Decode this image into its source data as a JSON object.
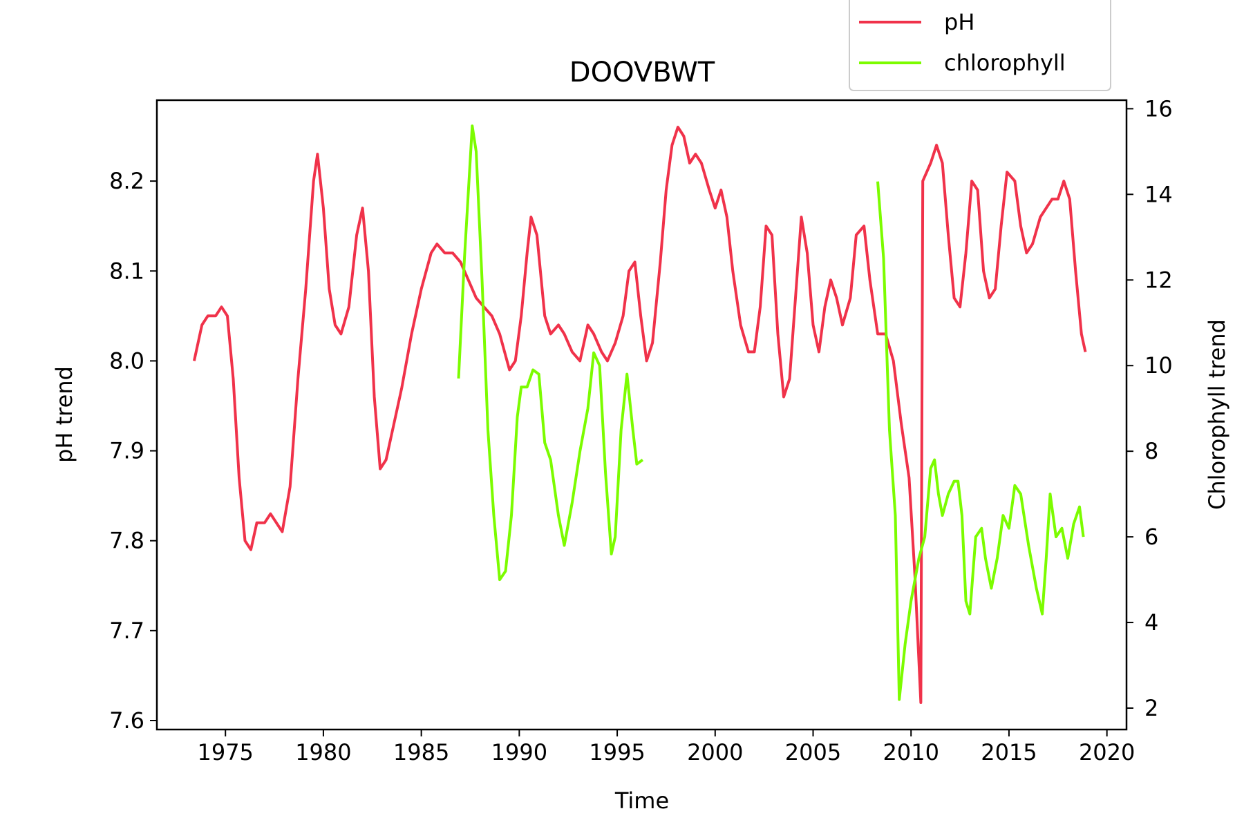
{
  "chart_data": {
    "type": "line",
    "title": "DOOVBWT",
    "xlabel": "Time",
    "ylabel": "pH trend",
    "y2label": "Chlorophyll trend",
    "xlim": [
      1971.5,
      2021.0
    ],
    "ylim": [
      7.59,
      8.29
    ],
    "y2lim": [
      1.5,
      16.2
    ],
    "x_ticks": [
      1975,
      1980,
      1985,
      1990,
      1995,
      2000,
      2005,
      2010,
      2015,
      2020
    ],
    "y_ticks": [
      7.6,
      7.7,
      7.8,
      7.9,
      8.0,
      8.1,
      8.2
    ],
    "y_tick_labels": [
      "7.6",
      "7.7",
      "7.8",
      "7.9",
      "8.0",
      "8.1",
      "8.2"
    ],
    "y2_ticks": [
      2,
      4,
      6,
      8,
      10,
      12,
      14,
      16
    ],
    "legend": {
      "placement": "top-right, above plot"
    },
    "series": [
      {
        "name": "pH",
        "axis": "left",
        "color": "#f0324a",
        "segments": [
          [
            [
              1973.4,
              8.0
            ],
            [
              1973.8,
              8.04
            ],
            [
              1974.1,
              8.05
            ],
            [
              1974.5,
              8.05
            ],
            [
              1974.8,
              8.06
            ],
            [
              1975.1,
              8.05
            ],
            [
              1975.4,
              7.98
            ],
            [
              1975.7,
              7.87
            ],
            [
              1976.0,
              7.8
            ],
            [
              1976.3,
              7.79
            ],
            [
              1976.6,
              7.82
            ],
            [
              1977.0,
              7.82
            ],
            [
              1977.3,
              7.83
            ],
            [
              1977.6,
              7.82
            ],
            [
              1977.9,
              7.81
            ],
            [
              1978.3,
              7.86
            ],
            [
              1978.7,
              7.98
            ],
            [
              1979.1,
              8.08
            ],
            [
              1979.5,
              8.2
            ],
            [
              1979.7,
              8.23
            ],
            [
              1980.0,
              8.17
            ],
            [
              1980.3,
              8.08
            ],
            [
              1980.6,
              8.04
            ],
            [
              1980.9,
              8.03
            ],
            [
              1981.3,
              8.06
            ],
            [
              1981.7,
              8.14
            ],
            [
              1982.0,
              8.17
            ],
            [
              1982.3,
              8.1
            ],
            [
              1982.6,
              7.96
            ],
            [
              1982.9,
              7.88
            ],
            [
              1983.2,
              7.89
            ],
            [
              1983.6,
              7.93
            ],
            [
              1984.0,
              7.97
            ],
            [
              1984.5,
              8.03
            ],
            [
              1985.0,
              8.08
            ],
            [
              1985.5,
              8.12
            ],
            [
              1985.8,
              8.13
            ],
            [
              1986.2,
              8.12
            ],
            [
              1986.6,
              8.12
            ],
            [
              1987.0,
              8.11
            ],
            [
              1987.4,
              8.09
            ],
            [
              1987.8,
              8.07
            ],
            [
              1988.2,
              8.06
            ],
            [
              1988.6,
              8.05
            ],
            [
              1989.0,
              8.03
            ],
            [
              1989.5,
              7.99
            ],
            [
              1989.8,
              8.0
            ],
            [
              1990.1,
              8.05
            ],
            [
              1990.4,
              8.12
            ],
            [
              1990.6,
              8.16
            ],
            [
              1990.9,
              8.14
            ],
            [
              1991.3,
              8.05
            ],
            [
              1991.6,
              8.03
            ],
            [
              1992.0,
              8.04
            ],
            [
              1992.3,
              8.03
            ],
            [
              1992.7,
              8.01
            ],
            [
              1993.1,
              8.0
            ],
            [
              1993.5,
              8.04
            ],
            [
              1993.8,
              8.03
            ],
            [
              1994.2,
              8.01
            ],
            [
              1994.5,
              8.0
            ],
            [
              1994.9,
              8.02
            ],
            [
              1995.3,
              8.05
            ],
            [
              1995.6,
              8.1
            ],
            [
              1995.9,
              8.11
            ],
            [
              1996.2,
              8.05
            ],
            [
              1996.5,
              8.0
            ],
            [
              1996.8,
              8.02
            ],
            [
              1997.2,
              8.11
            ],
            [
              1997.5,
              8.19
            ],
            [
              1997.8,
              8.24
            ],
            [
              1998.1,
              8.26
            ],
            [
              1998.4,
              8.25
            ],
            [
              1998.7,
              8.22
            ],
            [
              1999.0,
              8.23
            ],
            [
              1999.3,
              8.22
            ],
            [
              1999.7,
              8.19
            ],
            [
              2000.0,
              8.17
            ],
            [
              2000.3,
              8.19
            ],
            [
              2000.6,
              8.16
            ],
            [
              2000.9,
              8.1
            ],
            [
              2001.3,
              8.04
            ],
            [
              2001.7,
              8.01
            ],
            [
              2002.0,
              8.01
            ],
            [
              2002.3,
              8.06
            ],
            [
              2002.6,
              8.15
            ],
            [
              2002.9,
              8.14
            ],
            [
              2003.2,
              8.03
            ],
            [
              2003.5,
              7.96
            ],
            [
              2003.8,
              7.98
            ],
            [
              2004.1,
              8.07
            ],
            [
              2004.4,
              8.16
            ],
            [
              2004.7,
              8.12
            ],
            [
              2005.0,
              8.04
            ],
            [
              2005.3,
              8.01
            ],
            [
              2005.6,
              8.06
            ],
            [
              2005.9,
              8.09
            ],
            [
              2006.2,
              8.07
            ],
            [
              2006.5,
              8.04
            ],
            [
              2006.9,
              8.07
            ],
            [
              2007.2,
              8.14
            ],
            [
              2007.6,
              8.15
            ],
            [
              2007.9,
              8.09
            ],
            [
              2008.3,
              8.03
            ],
            [
              2008.7,
              8.03
            ],
            [
              2009.1,
              8.0
            ],
            [
              2009.5,
              7.93
            ],
            [
              2009.9,
              7.87
            ],
            [
              2010.2,
              7.76
            ],
            [
              2010.5,
              7.62
            ],
            [
              2010.6,
              8.2
            ],
            [
              2011.0,
              8.22
            ],
            [
              2011.3,
              8.24
            ],
            [
              2011.6,
              8.22
            ],
            [
              2011.9,
              8.14
            ],
            [
              2012.2,
              8.07
            ],
            [
              2012.5,
              8.06
            ],
            [
              2012.8,
              8.12
            ],
            [
              2013.1,
              8.2
            ],
            [
              2013.4,
              8.19
            ],
            [
              2013.7,
              8.1
            ],
            [
              2014.0,
              8.07
            ],
            [
              2014.3,
              8.08
            ],
            [
              2014.6,
              8.15
            ],
            [
              2014.9,
              8.21
            ],
            [
              2015.3,
              8.2
            ],
            [
              2015.6,
              8.15
            ],
            [
              2015.9,
              8.12
            ],
            [
              2016.2,
              8.13
            ],
            [
              2016.6,
              8.16
            ],
            [
              2016.9,
              8.17
            ],
            [
              2017.2,
              8.18
            ],
            [
              2017.5,
              8.18
            ],
            [
              2017.8,
              8.2
            ],
            [
              2018.1,
              8.18
            ],
            [
              2018.4,
              8.1
            ],
            [
              2018.7,
              8.03
            ],
            [
              2018.9,
              8.01
            ]
          ]
        ]
      },
      {
        "name": "chlorophyll",
        "axis": "right",
        "color": "#7cfc00",
        "segments": [
          [
            [
              1986.9,
              9.7
            ],
            [
              1987.2,
              12.5
            ],
            [
              1987.6,
              15.6
            ],
            [
              1987.8,
              15.0
            ],
            [
              1988.1,
              12.0
            ],
            [
              1988.4,
              8.5
            ],
            [
              1988.7,
              6.5
            ],
            [
              1989.0,
              5.0
            ],
            [
              1989.3,
              5.2
            ],
            [
              1989.6,
              6.5
            ],
            [
              1989.9,
              8.8
            ],
            [
              1990.1,
              9.5
            ],
            [
              1990.4,
              9.5
            ],
            [
              1990.7,
              9.9
            ],
            [
              1991.0,
              9.8
            ],
            [
              1991.3,
              8.2
            ],
            [
              1991.6,
              7.8
            ],
            [
              1992.0,
              6.5
            ],
            [
              1992.3,
              5.8
            ],
            [
              1992.7,
              6.8
            ],
            [
              1993.1,
              8.0
            ],
            [
              1993.5,
              9.0
            ],
            [
              1993.8,
              10.3
            ],
            [
              1994.1,
              10.0
            ],
            [
              1994.4,
              7.5
            ],
            [
              1994.7,
              5.6
            ],
            [
              1994.9,
              6.0
            ],
            [
              1995.2,
              8.5
            ],
            [
              1995.5,
              9.8
            ],
            [
              1995.8,
              8.5
            ],
            [
              1996.0,
              7.7
            ],
            [
              1996.3,
              7.8
            ]
          ],
          [
            [
              2008.3,
              14.3
            ],
            [
              2008.6,
              12.5
            ],
            [
              2008.9,
              8.5
            ],
            [
              2009.2,
              6.5
            ],
            [
              2009.4,
              2.2
            ],
            [
              2009.7,
              3.5
            ],
            [
              2010.0,
              4.5
            ],
            [
              2010.4,
              5.5
            ],
            [
              2010.7,
              6.0
            ],
            [
              2011.0,
              7.6
            ],
            [
              2011.2,
              7.8
            ],
            [
              2011.4,
              7.0
            ],
            [
              2011.6,
              6.5
            ],
            [
              2011.9,
              7.0
            ],
            [
              2012.2,
              7.3
            ],
            [
              2012.4,
              7.3
            ],
            [
              2012.6,
              6.5
            ],
            [
              2012.8,
              4.5
            ],
            [
              2013.0,
              4.2
            ],
            [
              2013.3,
              6.0
            ],
            [
              2013.6,
              6.2
            ],
            [
              2013.8,
              5.5
            ],
            [
              2014.1,
              4.8
            ],
            [
              2014.4,
              5.5
            ],
            [
              2014.7,
              6.5
            ],
            [
              2015.0,
              6.2
            ],
            [
              2015.3,
              7.2
            ],
            [
              2015.6,
              7.0
            ],
            [
              2016.0,
              5.8
            ],
            [
              2016.4,
              4.8
            ],
            [
              2016.7,
              4.2
            ],
            [
              2016.9,
              5.5
            ],
            [
              2017.1,
              7.0
            ],
            [
              2017.4,
              6.0
            ],
            [
              2017.7,
              6.2
            ],
            [
              2018.0,
              5.5
            ],
            [
              2018.3,
              6.3
            ],
            [
              2018.6,
              6.7
            ],
            [
              2018.8,
              6.0
            ]
          ]
        ]
      }
    ]
  }
}
